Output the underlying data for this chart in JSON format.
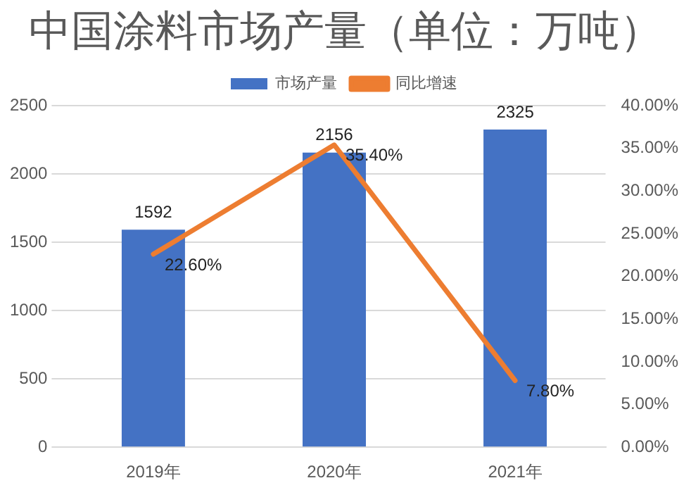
{
  "chart_data": {
    "type": "bar",
    "title": "中国涂料市场产量（单位：万吨）",
    "categories": [
      "2019年",
      "2020年",
      "2021年"
    ],
    "series": [
      {
        "name": "市场产量",
        "color": "#4472c4",
        "values": [
          1592,
          2156,
          2325
        ],
        "value_labels": [
          "1592",
          "2156",
          "2325"
        ]
      },
      {
        "name": "同比增速",
        "type": "line",
        "axis": "y2",
        "color": "#ed7d31",
        "values": [
          22.6,
          35.4,
          7.8
        ],
        "value_labels": [
          "22.60%",
          "35.40%",
          "7.80%"
        ]
      }
    ],
    "ylim": [
      0,
      2500
    ],
    "yticks": [
      0,
      500,
      1000,
      1500,
      2000,
      2500
    ],
    "y2lim": [
      0,
      40
    ],
    "y2ticks": [
      {
        "value": 0,
        "label": "0.00%"
      },
      {
        "value": 5,
        "label": "5.00%"
      },
      {
        "value": 10,
        "label": "10.00%"
      },
      {
        "value": 15,
        "label": "15.00%"
      },
      {
        "value": 20,
        "label": "20.00%"
      },
      {
        "value": 25,
        "label": "25.00%"
      },
      {
        "value": 30,
        "label": "30.00%"
      },
      {
        "value": 35,
        "label": "35.00%"
      },
      {
        "value": 40,
        "label": "40.00%"
      }
    ],
    "grid": "y",
    "legend": "top",
    "marker": "none"
  }
}
